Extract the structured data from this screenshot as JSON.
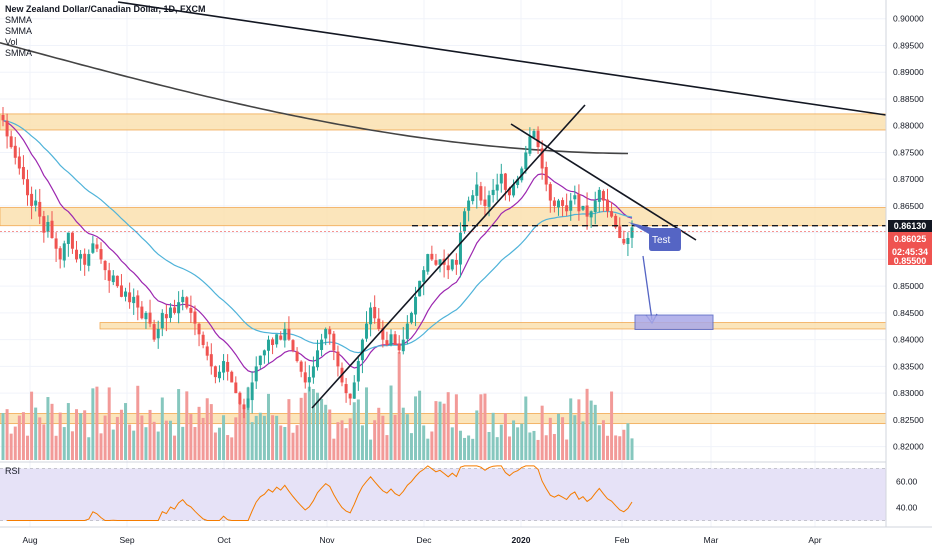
{
  "legend": {
    "title": "New Zealand Dollar/Canadian Dollar, 1D, FXCM",
    "lines": [
      "SMMA",
      "SMMA",
      "Vol",
      "SMMA"
    ]
  },
  "rsi_panel": {
    "label": "RSI"
  },
  "price_tags": {
    "current": "0.86130",
    "secondary": "0.86025",
    "timer": "02:45:34",
    "partial": "0.85500"
  },
  "annotation": {
    "label": "Test"
  },
  "colors": {
    "up": "#26a69a",
    "down": "#ef5350",
    "up_vol": "#86c7be",
    "down_vol": "#f29a98",
    "zone_fill": "#fbe3b4",
    "zone_border": "#f0a040",
    "smma_fast": "#9c27b0",
    "smma_slow": "#4fb3d9",
    "smma_long": "#444444",
    "rsi_line": "#f57c00",
    "rsi_band": "#e6e2f7",
    "annotation": "#5565c4",
    "target_box": "#a9a8e8",
    "current_tag": "#131722",
    "secondary_tag": "#ef5350"
  },
  "chart_data": {
    "type": "candlestick",
    "title": "New Zealand Dollar/Canadian Dollar, 1D, FXCM",
    "price_axis": {
      "ylim": [
        0.8175,
        0.9035
      ],
      "ticks": [
        "0.90000",
        "0.89500",
        "0.89000",
        "0.88500",
        "0.88000",
        "0.87500",
        "0.87000",
        "0.86500",
        "0.86000",
        "0.85500",
        "0.85000",
        "0.84500",
        "0.84000",
        "0.83500",
        "0.83000",
        "0.82500",
        "0.82000"
      ]
    },
    "rsi_axis": {
      "ticks": [
        "60.00",
        "40.00"
      ],
      "band": [
        30,
        70
      ]
    },
    "time_axis": [
      "Aug",
      "Sep",
      "Oct",
      "Nov",
      "Dec",
      "2020",
      "Feb",
      "Mar",
      "Apr"
    ],
    "zones": [
      {
        "from": 0.8792,
        "to": 0.8822
      },
      {
        "from": 0.8613,
        "to": 0.8647
      },
      {
        "from": 0.842,
        "to": 0.8432
      },
      {
        "from": 0.8243,
        "to": 0.8262
      }
    ],
    "target_box": {
      "from": 0.8419,
      "to": 0.8446
    },
    "current_price": 0.8613,
    "secondary_price": 0.86025,
    "closes": [
      0.881,
      0.878,
      0.876,
      0.874,
      0.872,
      0.87,
      0.867,
      0.865,
      0.866,
      0.863,
      0.86,
      0.862,
      0.859,
      0.857,
      0.855,
      0.858,
      0.86,
      0.857,
      0.855,
      0.856,
      0.854,
      0.856,
      0.858,
      0.857,
      0.855,
      0.853,
      0.851,
      0.852,
      0.85,
      0.848,
      0.849,
      0.847,
      0.848,
      0.846,
      0.844,
      0.845,
      0.843,
      0.84,
      0.842,
      0.845,
      0.844,
      0.846,
      0.845,
      0.847,
      0.848,
      0.846,
      0.845,
      0.843,
      0.841,
      0.839,
      0.837,
      0.835,
      0.833,
      0.834,
      0.836,
      0.834,
      0.832,
      0.83,
      0.828,
      0.827,
      0.829,
      0.832,
      0.835,
      0.837,
      0.838,
      0.84,
      0.839,
      0.841,
      0.84,
      0.842,
      0.84,
      0.838,
      0.836,
      0.834,
      0.832,
      0.833,
      0.835,
      0.838,
      0.84,
      0.842,
      0.841,
      0.838,
      0.835,
      0.832,
      0.83,
      0.829,
      0.832,
      0.836,
      0.84,
      0.843,
      0.846,
      0.844,
      0.842,
      0.84,
      0.839,
      0.841,
      0.839,
      0.838,
      0.84,
      0.843,
      0.845,
      0.848,
      0.851,
      0.853,
      0.856,
      0.855,
      0.854,
      0.855,
      0.854,
      0.853,
      0.855,
      0.854,
      0.86,
      0.864,
      0.866,
      0.867,
      0.869,
      0.866,
      0.865,
      0.867,
      0.868,
      0.869,
      0.871,
      0.868,
      0.867,
      0.869,
      0.87,
      0.872,
      0.875,
      0.878,
      0.879,
      0.876,
      0.872,
      0.869,
      0.866,
      0.865,
      0.866,
      0.865,
      0.864,
      0.866,
      0.867,
      0.864,
      0.865,
      0.863,
      0.864,
      0.866,
      0.868,
      0.866,
      0.864,
      0.863,
      0.861,
      0.859,
      0.858,
      0.859,
      0.861
    ],
    "rsi_range": [
      30,
      72
    ]
  }
}
